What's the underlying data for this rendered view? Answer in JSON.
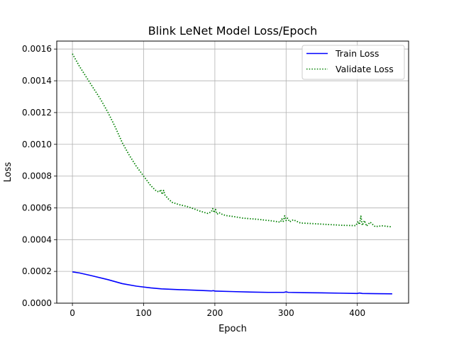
{
  "chart_data": {
    "type": "line",
    "title": "Blink LeNet Model Loss/Epoch",
    "xlabel": "Epoch",
    "ylabel": "Loss",
    "xlim": [
      -22,
      472
    ],
    "ylim": [
      0,
      0.00165
    ],
    "xticks": [
      {
        "value": 0,
        "label": "0"
      },
      {
        "value": 100,
        "label": "100"
      },
      {
        "value": 200,
        "label": "200"
      },
      {
        "value": 300,
        "label": "300"
      },
      {
        "value": 400,
        "label": "400"
      }
    ],
    "yticks": [
      {
        "value": 0,
        "label": "0.0000"
      },
      {
        "value": 0.0002,
        "label": "0.0002"
      },
      {
        "value": 0.0004,
        "label": "0.0004"
      },
      {
        "value": 0.0006,
        "label": "0.0006"
      },
      {
        "value": 0.0008,
        "label": "0.0008"
      },
      {
        "value": 0.001,
        "label": "0.0010"
      },
      {
        "value": 0.0012,
        "label": "0.0012"
      },
      {
        "value": 0.0014,
        "label": "0.0014"
      },
      {
        "value": 0.0016,
        "label": "0.0016"
      }
    ],
    "grid": true,
    "legend": "top-right",
    "series": [
      {
        "name": "Train Loss",
        "color": "#0000ff",
        "style": "solid",
        "x": [
          0,
          10,
          25,
          50,
          70,
          90,
          110,
          125,
          150,
          175,
          195,
          198,
          200,
          225,
          250,
          275,
          297,
          300,
          303,
          325,
          350,
          375,
          400,
          403,
          407,
          425,
          449
        ],
        "y": [
          0.000197,
          0.00019,
          0.000175,
          0.000148,
          0.000123,
          0.000107,
          9.6e-05,
          9e-05,
          8.5e-05,
          8.1e-05,
          7.7e-05,
          7.9e-05,
          7.6e-05,
          7.3e-05,
          7e-05,
          6.8e-05,
          6.8e-05,
          7.1e-05,
          6.8e-05,
          6.6e-05,
          6.5e-05,
          6.3e-05,
          6.1e-05,
          6.4e-05,
          6.1e-05,
          6e-05,
          5.9e-05
        ]
      },
      {
        "name": "Validate Loss",
        "color": "#008000",
        "style": "dotted",
        "x": [
          0,
          5,
          10,
          20,
          30,
          40,
          50,
          60,
          70,
          80,
          90,
          100,
          110,
          118,
          122,
          124,
          126,
          128,
          130,
          135,
          140,
          150,
          160,
          170,
          180,
          190,
          195,
          197,
          199,
          201,
          203,
          206,
          210,
          215,
          225,
          240,
          260,
          280,
          292,
          294,
          296,
          298,
          300,
          302,
          305,
          310,
          320,
          340,
          360,
          380,
          398,
          401,
          403,
          405,
          407,
          410,
          413,
          418,
          425,
          435,
          449
        ],
        "y": [
          0.00157,
          0.00153,
          0.00149,
          0.00142,
          0.00135,
          0.00128,
          0.0012,
          0.00111,
          0.00101,
          0.00093,
          0.00086,
          0.0008,
          0.00074,
          0.000705,
          0.0007,
          0.000715,
          0.000685,
          0.00071,
          0.00068,
          0.000655,
          0.000635,
          0.00062,
          0.00061,
          0.000595,
          0.000578,
          0.000565,
          0.000575,
          0.000595,
          0.00057,
          0.00059,
          0.00056,
          0.00057,
          0.00056,
          0.000552,
          0.000546,
          0.000535,
          0.000528,
          0.000518,
          0.00051,
          0.00053,
          0.000515,
          0.00055,
          0.00052,
          0.000535,
          0.000512,
          0.000525,
          0.000505,
          0.0005,
          0.000495,
          0.00049,
          0.000488,
          0.000515,
          0.000495,
          0.000548,
          0.00049,
          0.00052,
          0.000485,
          0.00051,
          0.000482,
          0.000487,
          0.00048
        ]
      }
    ]
  }
}
